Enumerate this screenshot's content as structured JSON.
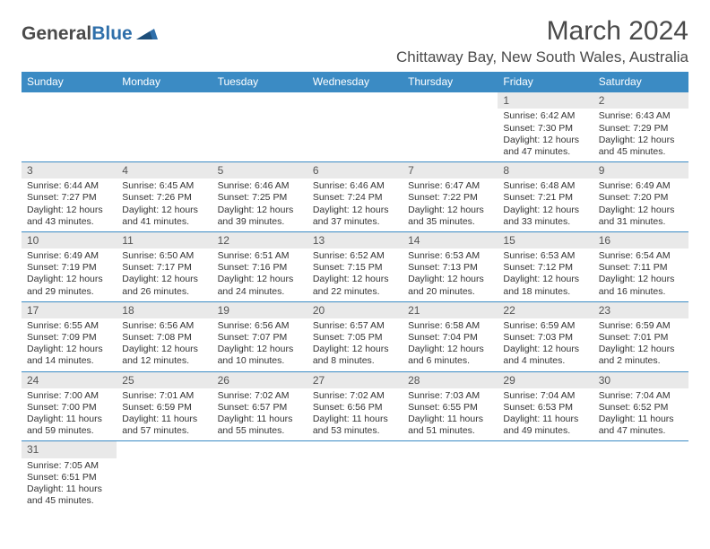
{
  "brand": {
    "part1": "General",
    "part2": "Blue"
  },
  "title": "March 2024",
  "location": "Chittaway Bay, New South Wales, Australia",
  "colors": {
    "header_bg": "#3b8bc4",
    "header_text": "#ffffff",
    "daynum_bg": "#e9e9e9",
    "row_border": "#3b8bc4",
    "brand_blue": "#2f6faa",
    "text": "#333333"
  },
  "weekdays": [
    "Sunday",
    "Monday",
    "Tuesday",
    "Wednesday",
    "Thursday",
    "Friday",
    "Saturday"
  ],
  "weeks": [
    [
      {
        "empty": true
      },
      {
        "empty": true
      },
      {
        "empty": true
      },
      {
        "empty": true
      },
      {
        "empty": true
      },
      {
        "n": "1",
        "sr": "Sunrise: 6:42 AM",
        "ss": "Sunset: 7:30 PM",
        "d1": "Daylight: 12 hours",
        "d2": "and 47 minutes."
      },
      {
        "n": "2",
        "sr": "Sunrise: 6:43 AM",
        "ss": "Sunset: 7:29 PM",
        "d1": "Daylight: 12 hours",
        "d2": "and 45 minutes."
      }
    ],
    [
      {
        "n": "3",
        "sr": "Sunrise: 6:44 AM",
        "ss": "Sunset: 7:27 PM",
        "d1": "Daylight: 12 hours",
        "d2": "and 43 minutes."
      },
      {
        "n": "4",
        "sr": "Sunrise: 6:45 AM",
        "ss": "Sunset: 7:26 PM",
        "d1": "Daylight: 12 hours",
        "d2": "and 41 minutes."
      },
      {
        "n": "5",
        "sr": "Sunrise: 6:46 AM",
        "ss": "Sunset: 7:25 PM",
        "d1": "Daylight: 12 hours",
        "d2": "and 39 minutes."
      },
      {
        "n": "6",
        "sr": "Sunrise: 6:46 AM",
        "ss": "Sunset: 7:24 PM",
        "d1": "Daylight: 12 hours",
        "d2": "and 37 minutes."
      },
      {
        "n": "7",
        "sr": "Sunrise: 6:47 AM",
        "ss": "Sunset: 7:22 PM",
        "d1": "Daylight: 12 hours",
        "d2": "and 35 minutes."
      },
      {
        "n": "8",
        "sr": "Sunrise: 6:48 AM",
        "ss": "Sunset: 7:21 PM",
        "d1": "Daylight: 12 hours",
        "d2": "and 33 minutes."
      },
      {
        "n": "9",
        "sr": "Sunrise: 6:49 AM",
        "ss": "Sunset: 7:20 PM",
        "d1": "Daylight: 12 hours",
        "d2": "and 31 minutes."
      }
    ],
    [
      {
        "n": "10",
        "sr": "Sunrise: 6:49 AM",
        "ss": "Sunset: 7:19 PM",
        "d1": "Daylight: 12 hours",
        "d2": "and 29 minutes."
      },
      {
        "n": "11",
        "sr": "Sunrise: 6:50 AM",
        "ss": "Sunset: 7:17 PM",
        "d1": "Daylight: 12 hours",
        "d2": "and 26 minutes."
      },
      {
        "n": "12",
        "sr": "Sunrise: 6:51 AM",
        "ss": "Sunset: 7:16 PM",
        "d1": "Daylight: 12 hours",
        "d2": "and 24 minutes."
      },
      {
        "n": "13",
        "sr": "Sunrise: 6:52 AM",
        "ss": "Sunset: 7:15 PM",
        "d1": "Daylight: 12 hours",
        "d2": "and 22 minutes."
      },
      {
        "n": "14",
        "sr": "Sunrise: 6:53 AM",
        "ss": "Sunset: 7:13 PM",
        "d1": "Daylight: 12 hours",
        "d2": "and 20 minutes."
      },
      {
        "n": "15",
        "sr": "Sunrise: 6:53 AM",
        "ss": "Sunset: 7:12 PM",
        "d1": "Daylight: 12 hours",
        "d2": "and 18 minutes."
      },
      {
        "n": "16",
        "sr": "Sunrise: 6:54 AM",
        "ss": "Sunset: 7:11 PM",
        "d1": "Daylight: 12 hours",
        "d2": "and 16 minutes."
      }
    ],
    [
      {
        "n": "17",
        "sr": "Sunrise: 6:55 AM",
        "ss": "Sunset: 7:09 PM",
        "d1": "Daylight: 12 hours",
        "d2": "and 14 minutes."
      },
      {
        "n": "18",
        "sr": "Sunrise: 6:56 AM",
        "ss": "Sunset: 7:08 PM",
        "d1": "Daylight: 12 hours",
        "d2": "and 12 minutes."
      },
      {
        "n": "19",
        "sr": "Sunrise: 6:56 AM",
        "ss": "Sunset: 7:07 PM",
        "d1": "Daylight: 12 hours",
        "d2": "and 10 minutes."
      },
      {
        "n": "20",
        "sr": "Sunrise: 6:57 AM",
        "ss": "Sunset: 7:05 PM",
        "d1": "Daylight: 12 hours",
        "d2": "and 8 minutes."
      },
      {
        "n": "21",
        "sr": "Sunrise: 6:58 AM",
        "ss": "Sunset: 7:04 PM",
        "d1": "Daylight: 12 hours",
        "d2": "and 6 minutes."
      },
      {
        "n": "22",
        "sr": "Sunrise: 6:59 AM",
        "ss": "Sunset: 7:03 PM",
        "d1": "Daylight: 12 hours",
        "d2": "and 4 minutes."
      },
      {
        "n": "23",
        "sr": "Sunrise: 6:59 AM",
        "ss": "Sunset: 7:01 PM",
        "d1": "Daylight: 12 hours",
        "d2": "and 2 minutes."
      }
    ],
    [
      {
        "n": "24",
        "sr": "Sunrise: 7:00 AM",
        "ss": "Sunset: 7:00 PM",
        "d1": "Daylight: 11 hours",
        "d2": "and 59 minutes."
      },
      {
        "n": "25",
        "sr": "Sunrise: 7:01 AM",
        "ss": "Sunset: 6:59 PM",
        "d1": "Daylight: 11 hours",
        "d2": "and 57 minutes."
      },
      {
        "n": "26",
        "sr": "Sunrise: 7:02 AM",
        "ss": "Sunset: 6:57 PM",
        "d1": "Daylight: 11 hours",
        "d2": "and 55 minutes."
      },
      {
        "n": "27",
        "sr": "Sunrise: 7:02 AM",
        "ss": "Sunset: 6:56 PM",
        "d1": "Daylight: 11 hours",
        "d2": "and 53 minutes."
      },
      {
        "n": "28",
        "sr": "Sunrise: 7:03 AM",
        "ss": "Sunset: 6:55 PM",
        "d1": "Daylight: 11 hours",
        "d2": "and 51 minutes."
      },
      {
        "n": "29",
        "sr": "Sunrise: 7:04 AM",
        "ss": "Sunset: 6:53 PM",
        "d1": "Daylight: 11 hours",
        "d2": "and 49 minutes."
      },
      {
        "n": "30",
        "sr": "Sunrise: 7:04 AM",
        "ss": "Sunset: 6:52 PM",
        "d1": "Daylight: 11 hours",
        "d2": "and 47 minutes."
      }
    ],
    [
      {
        "n": "31",
        "sr": "Sunrise: 7:05 AM",
        "ss": "Sunset: 6:51 PM",
        "d1": "Daylight: 11 hours",
        "d2": "and 45 minutes."
      },
      {
        "empty": true
      },
      {
        "empty": true
      },
      {
        "empty": true
      },
      {
        "empty": true
      },
      {
        "empty": true
      },
      {
        "empty": true
      }
    ]
  ]
}
